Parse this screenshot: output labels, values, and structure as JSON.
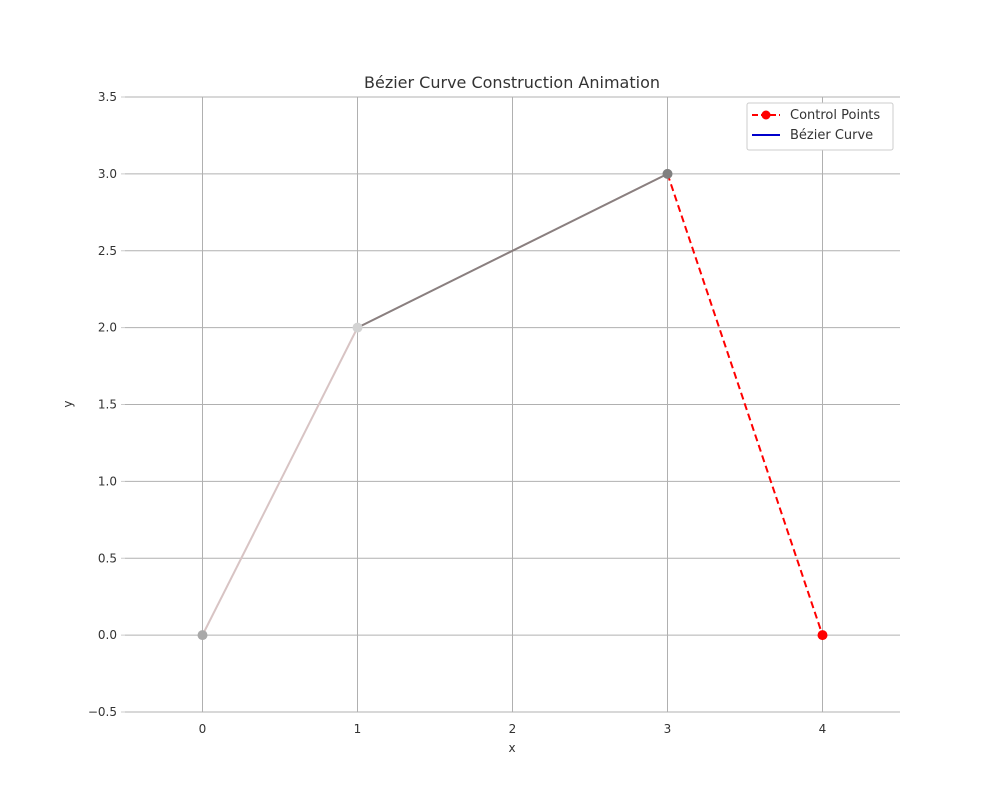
{
  "chart_data": {
    "type": "line",
    "title": "Bézier Curve Construction Animation",
    "xlabel": "x",
    "ylabel": "y",
    "xlim": [
      -0.5,
      4.5
    ],
    "ylim": [
      -0.5,
      3.5
    ],
    "xticks": [
      0,
      1,
      2,
      3,
      4
    ],
    "yticks": [
      -0.5,
      0.0,
      0.5,
      1.0,
      1.5,
      2.0,
      2.5,
      3.0,
      3.5
    ],
    "xtick_labels": [
      "0",
      "1",
      "2",
      "3",
      "4"
    ],
    "ytick_labels": [
      "−0.5",
      "0.0",
      "0.5",
      "1.0",
      "1.5",
      "2.0",
      "2.5",
      "3.0",
      "3.5"
    ],
    "grid": true,
    "legend_position": "top-right",
    "construction_segments": [
      {
        "from": [
          0,
          0
        ],
        "to": [
          1,
          2
        ],
        "color": "#d8c4c4"
      },
      {
        "from": [
          1,
          2
        ],
        "to": [
          3,
          3
        ],
        "color": "#8a7f7f"
      }
    ],
    "construction_points": [
      {
        "x": 0,
        "y": 0,
        "color": "#a9a9a9"
      },
      {
        "x": 1,
        "y": 2,
        "color": "#d3d3d3"
      },
      {
        "x": 3,
        "y": 3,
        "color": "#808080"
      }
    ],
    "series": [
      {
        "name": "Control Points",
        "color": "#ff0000",
        "style": "dashed",
        "marker": "circle",
        "x": [
          3,
          4
        ],
        "y": [
          3,
          0
        ]
      },
      {
        "name": "Bézier Curve",
        "color": "#0000cc",
        "style": "solid",
        "x": [],
        "y": []
      }
    ]
  }
}
